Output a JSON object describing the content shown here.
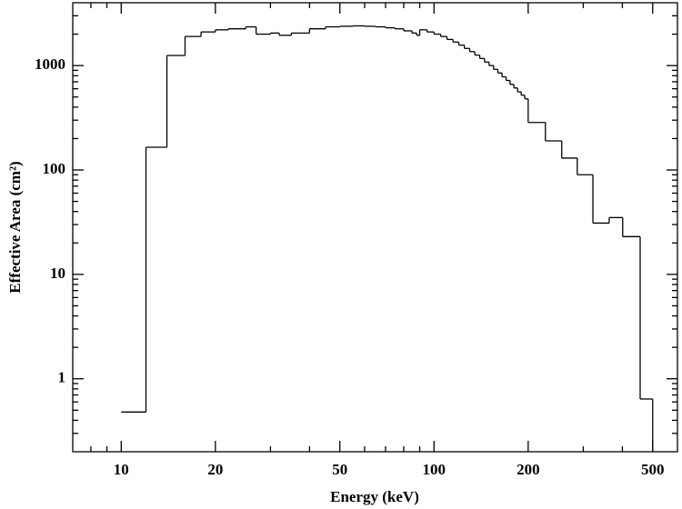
{
  "chart_data": {
    "type": "histogram",
    "xlabel": "Energy (keV)",
    "ylabel": "Effective Area (cm²)",
    "xscale": "log",
    "yscale": "log",
    "xlim": [
      7,
      600
    ],
    "ylim": [
      0.2,
      4000
    ],
    "xticks": [
      10,
      20,
      50,
      100,
      200,
      500
    ],
    "xminorticks": [
      8,
      9,
      30,
      40,
      60,
      70,
      80,
      90,
      300,
      400
    ],
    "yticks": [
      1,
      10,
      100,
      1000
    ],
    "yminorticks": [
      0.3,
      0.4,
      0.5,
      0.6,
      0.7,
      0.8,
      0.9,
      2,
      3,
      4,
      5,
      6,
      7,
      8,
      9,
      20,
      30,
      40,
      50,
      60,
      70,
      80,
      90,
      200,
      300,
      400,
      500,
      600,
      700,
      800,
      900,
      2000,
      3000
    ],
    "color": "#000000",
    "bins": [
      10,
      12,
      14,
      16,
      18,
      20,
      22,
      25,
      27,
      30,
      32,
      35,
      40,
      45,
      50,
      55,
      60,
      65,
      70,
      75,
      80,
      85,
      88,
      90,
      95,
      100,
      105,
      110,
      115,
      120,
      125,
      130,
      135,
      140,
      145,
      150,
      155,
      160,
      165,
      170,
      175,
      180,
      185,
      190,
      195,
      200,
      227,
      256,
      287,
      322,
      363,
      401,
      456,
      500
    ],
    "counts": [
      0.48,
      165,
      1250,
      1900,
      2100,
      2200,
      2250,
      2350,
      2000,
      2050,
      1950,
      2050,
      2250,
      2350,
      2380,
      2400,
      2380,
      2350,
      2300,
      2250,
      2150,
      2050,
      1950,
      2200,
      2100,
      2000,
      1900,
      1780,
      1680,
      1570,
      1460,
      1360,
      1260,
      1170,
      1080,
      1000,
      920,
      850,
      780,
      720,
      660,
      610,
      560,
      520,
      480,
      285,
      190,
      130,
      90,
      31,
      35,
      23,
      0.64
    ]
  }
}
